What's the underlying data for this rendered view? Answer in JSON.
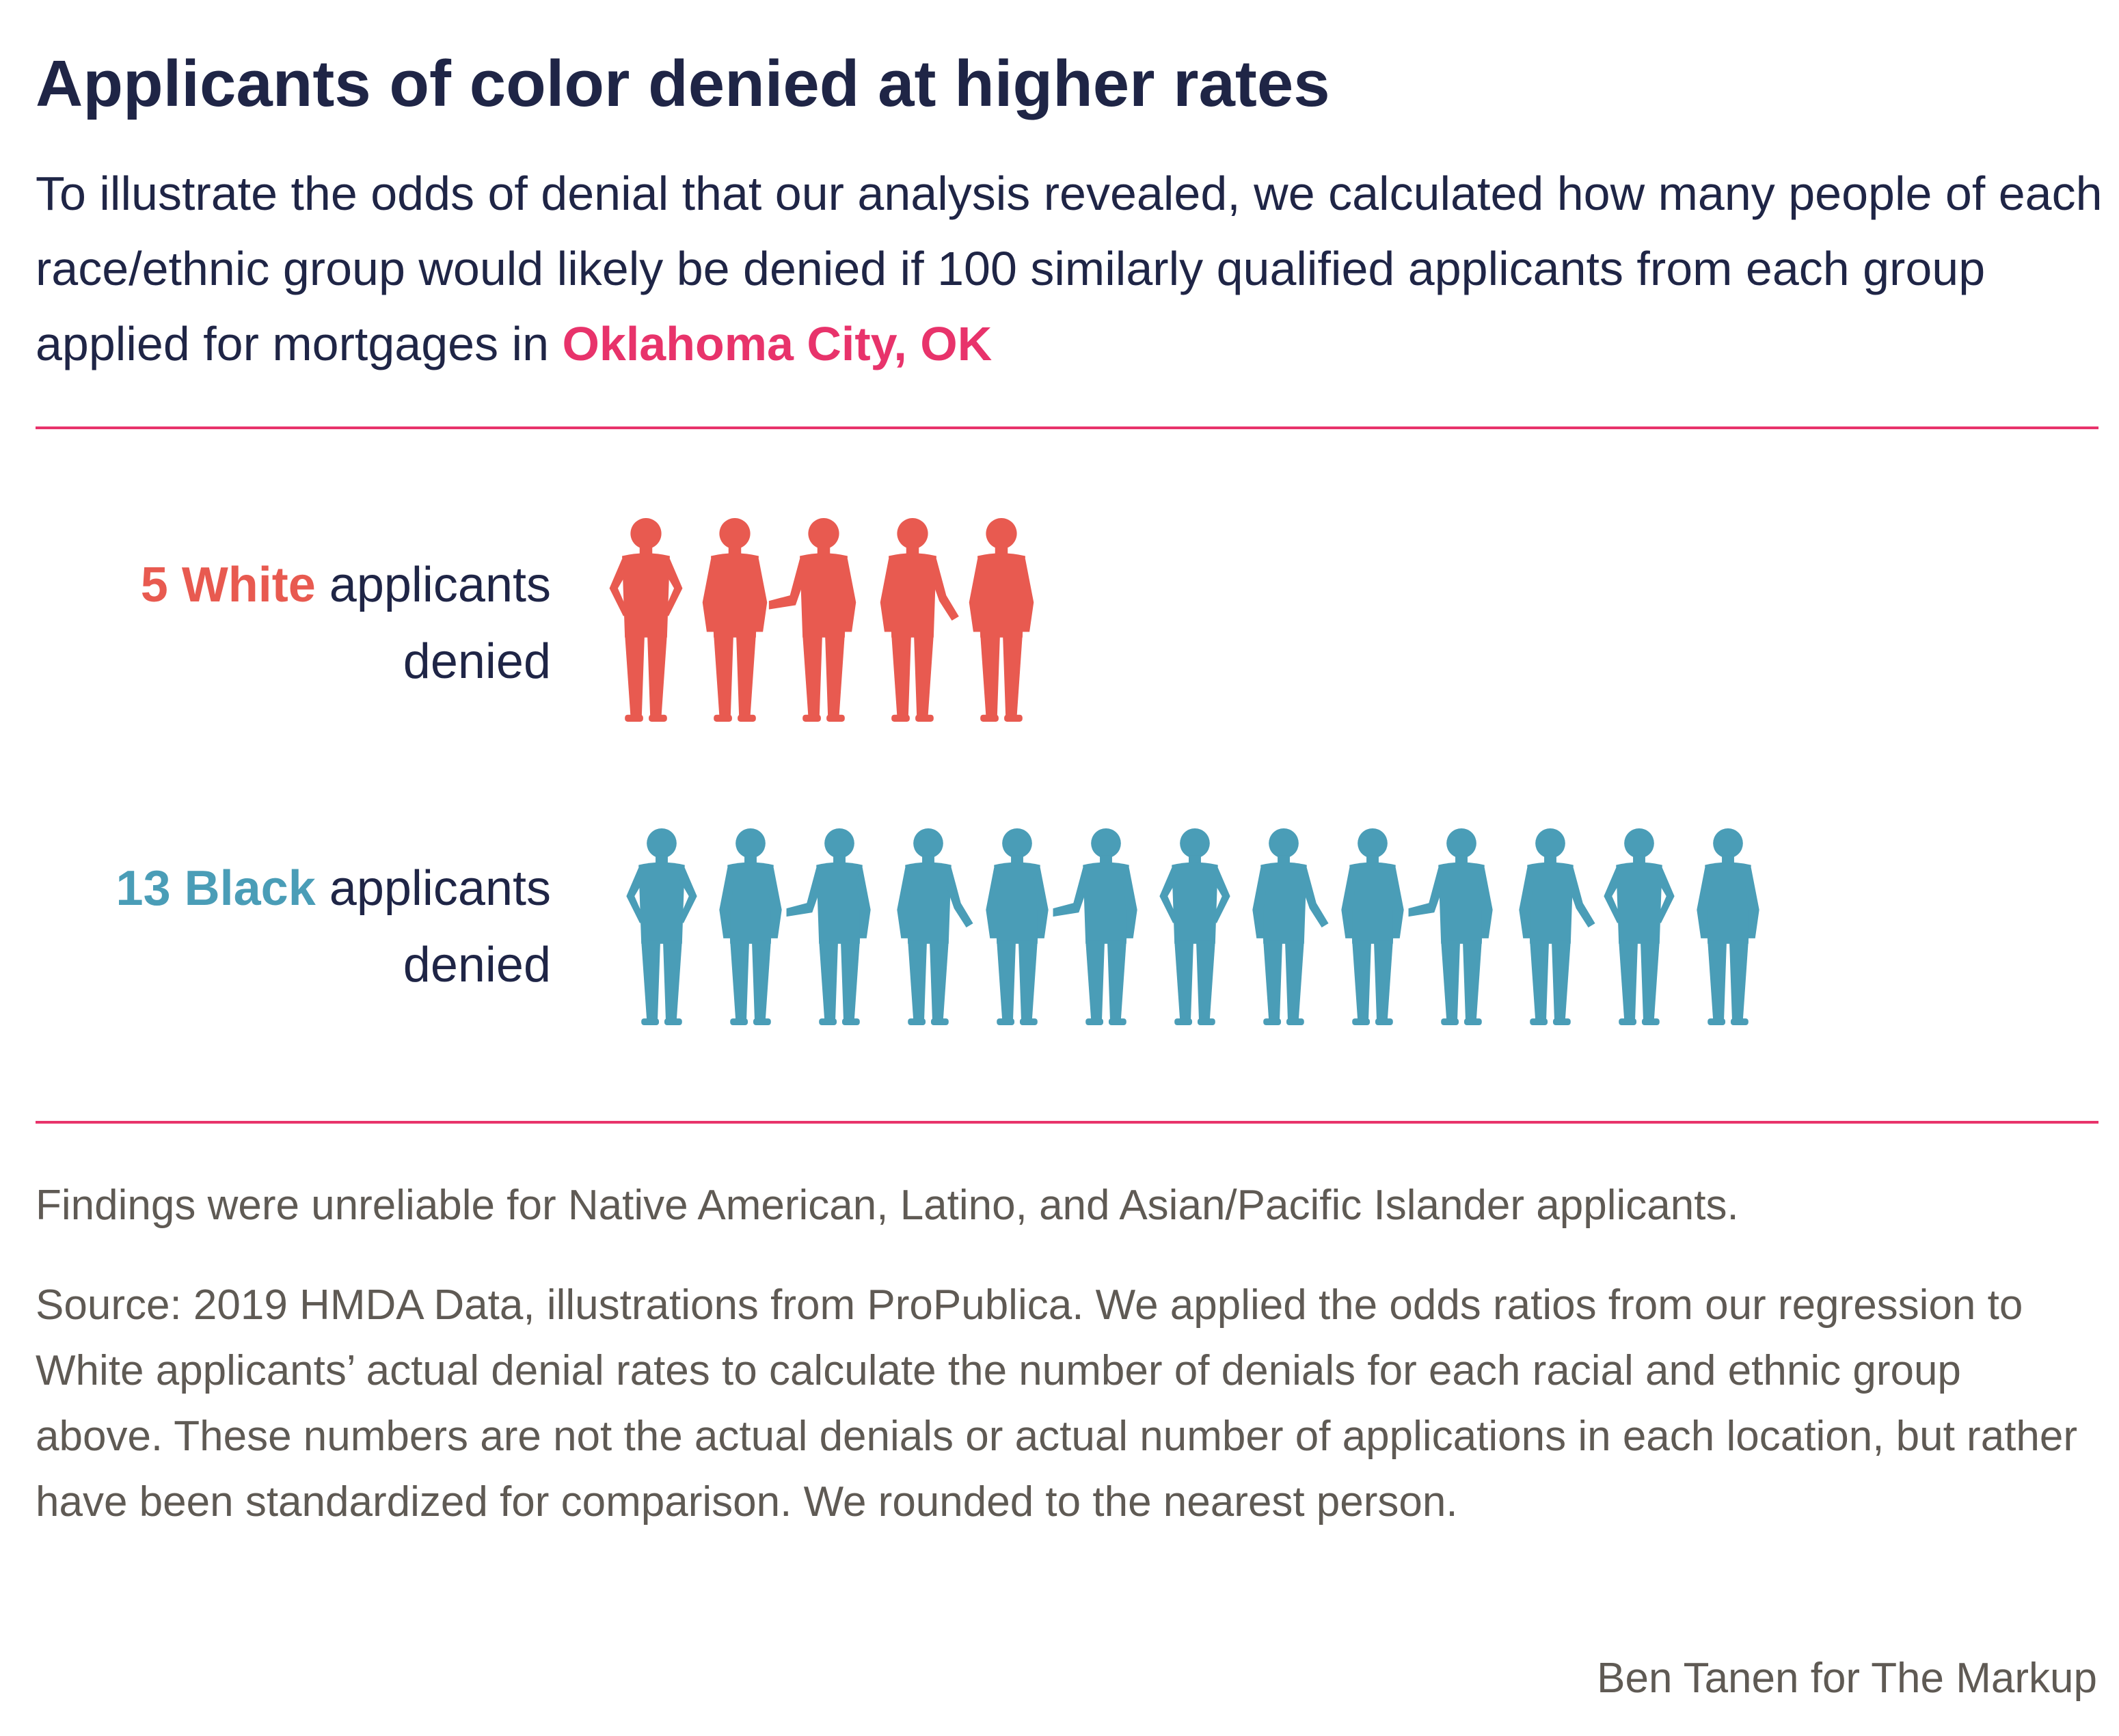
{
  "header": {
    "title": "Applicants of color denied at higher rates",
    "subtitle": "To illustrate the odds of denial that our analysis revealed, we calculated how many people of each race/ethnic group would likely be denied if 100 similarly qualified applicants from each group applied for mortgages in ",
    "place": "Oklahoma City, OK"
  },
  "chart_data": {
    "type": "pictogram",
    "unit": "people denied per 100 similarly qualified applicants",
    "series": [
      {
        "name": "White",
        "value": 5,
        "number_label": "5",
        "group_label": "White",
        "label_middle": " applicants",
        "label_end": "denied",
        "color": "#e85a50"
      },
      {
        "name": "Black",
        "value": 13,
        "number_label": "13",
        "group_label": "Black",
        "label_middle": " applicants",
        "label_end": "denied",
        "color": "#4a9db7"
      }
    ]
  },
  "colors": {
    "title": "#1f2546",
    "accent": "#e8336b",
    "white_group": "#e85a50",
    "black_group": "#4a9db7",
    "notes": "#5f5a54"
  },
  "footer": {
    "note": "Findings were unreliable for Native American, Latino, and Asian/Pacific Islander applicants.",
    "source": "Source: 2019 HMDA Data, illustrations from ProPublica. We applied the odds ratios from our regression to White applicants’ actual denial rates to calculate the number of denials for each racial and ethnic group above. These numbers are not the actual denials or actual number of applications in each location, but rather have been standardized for comparison. We rounded to the nearest person.",
    "credit": "Ben Tanen for The Markup"
  }
}
